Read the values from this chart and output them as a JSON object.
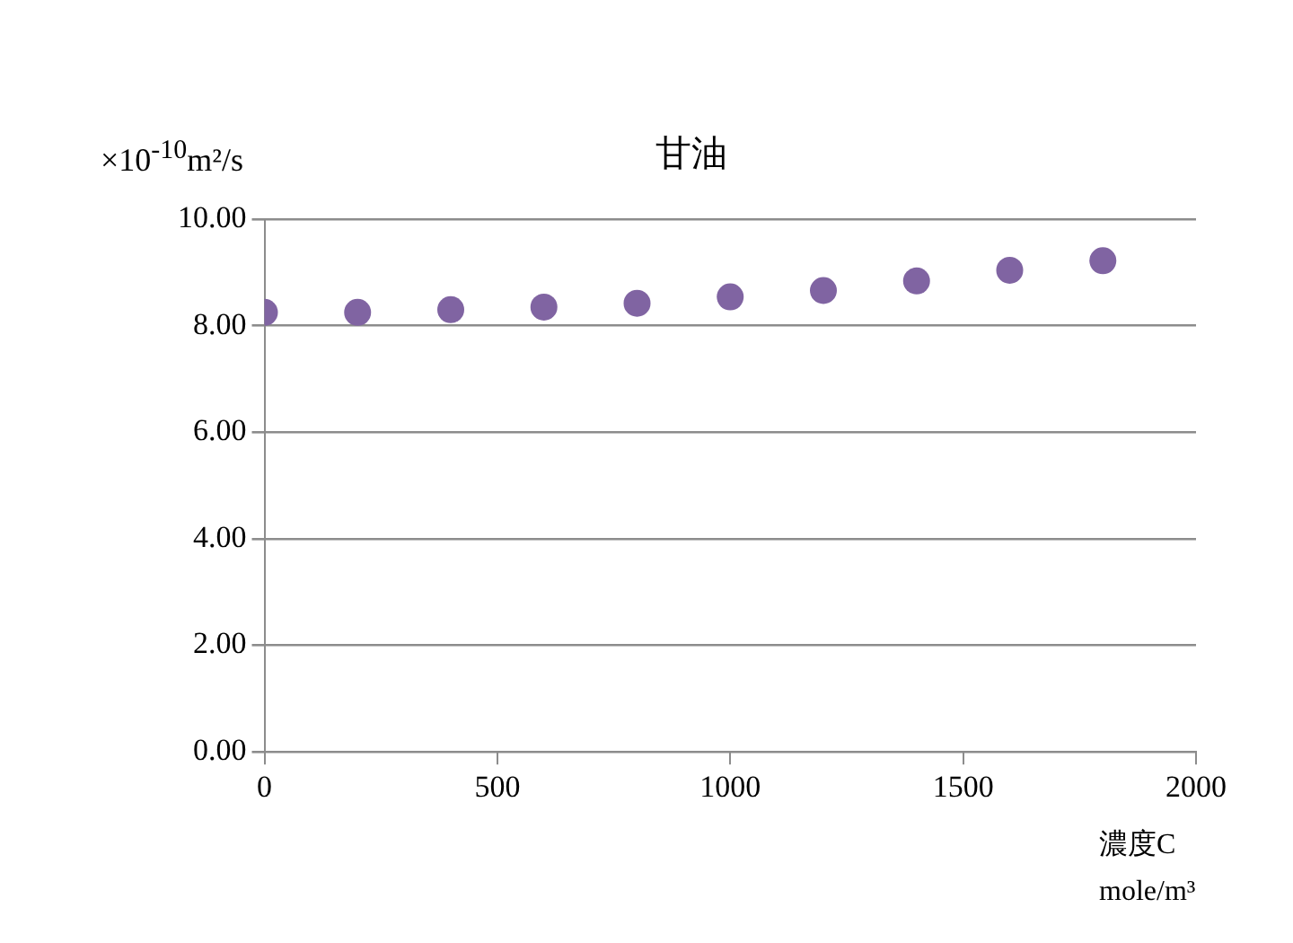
{
  "chart_data": {
    "type": "scatter",
    "title": "甘油",
    "ylabel": "×10$^{-10}$m²/s",
    "xlabel": "濃度C mole/m³",
    "x": [
      0,
      200,
      400,
      600,
      800,
      1000,
      1200,
      1400,
      1600,
      1800
    ],
    "series": [
      {
        "color": "#8064a2",
        "values": [
          8.25,
          8.25,
          8.3,
          8.35,
          8.42,
          8.54,
          8.66,
          8.84,
          9.04,
          9.22
        ]
      }
    ],
    "xlim": [
      0,
      2000
    ],
    "xticks": [
      0,
      500,
      1000,
      1500,
      2000
    ],
    "ylim": [
      0,
      10
    ],
    "yticks": [
      {
        "value": 0,
        "label": "0.00"
      },
      {
        "value": 2,
        "label": "2.00"
      },
      {
        "value": 4,
        "label": "4.00"
      },
      {
        "value": 6,
        "label": "6.00"
      },
      {
        "value": 8,
        "label": "8.00"
      },
      {
        "value": 10,
        "label": "10.00"
      }
    ],
    "grid": "y",
    "marker": "circle",
    "legend": false
  }
}
